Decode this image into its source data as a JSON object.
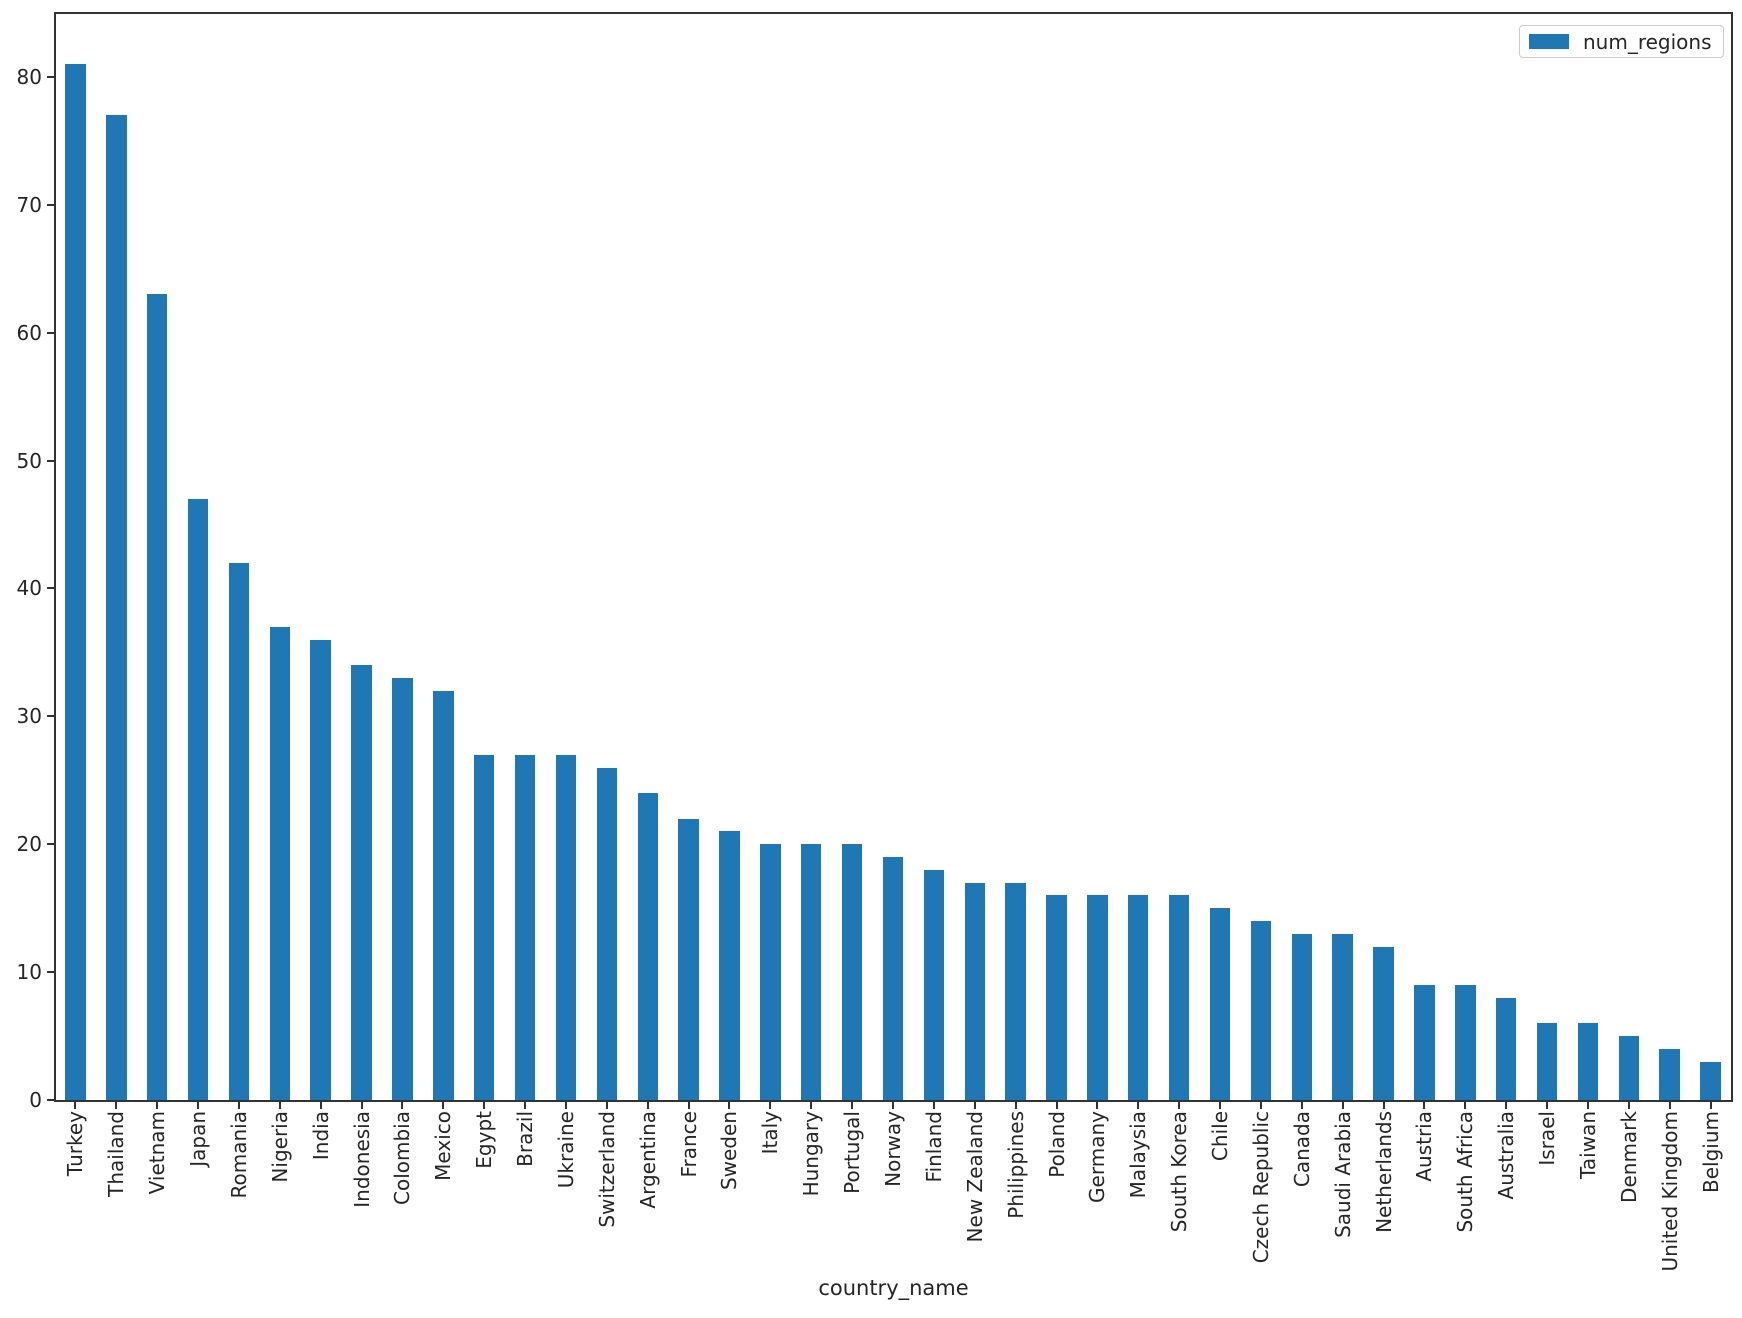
{
  "chart_data": {
    "type": "bar",
    "title": "",
    "xlabel": "country_name",
    "ylabel": "",
    "legend_label": "num_regions",
    "legend_position": "upper right",
    "bar_color": "#1f77b4",
    "axis_color": "#333333",
    "grid": false,
    "ylim": [
      0,
      85
    ],
    "yticks": [
      0,
      10,
      20,
      30,
      40,
      50,
      60,
      70,
      80
    ],
    "categories": [
      "Turkey",
      "Thailand",
      "Vietnam",
      "Japan",
      "Romania",
      "Nigeria",
      "India",
      "Indonesia",
      "Colombia",
      "Mexico",
      "Egypt",
      "Brazil",
      "Ukraine",
      "Switzerland",
      "Argentina",
      "France",
      "Sweden",
      "Italy",
      "Hungary",
      "Portugal",
      "Norway",
      "Finland",
      "New Zealand",
      "Philippines",
      "Poland",
      "Germany",
      "Malaysia",
      "South Korea",
      "Chile",
      "Czech Republic",
      "Canada",
      "Saudi Arabia",
      "Netherlands",
      "Austria",
      "South Africa",
      "Australia",
      "Israel",
      "Taiwan",
      "Denmark",
      "United Kingdom",
      "Belgium"
    ],
    "values": [
      81,
      77,
      63,
      47,
      42,
      37,
      36,
      34,
      33,
      32,
      27,
      27,
      27,
      26,
      24,
      22,
      21,
      20,
      20,
      20,
      19,
      18,
      17,
      17,
      16,
      16,
      16,
      16,
      15,
      14,
      13,
      13,
      12,
      9,
      9,
      8,
      6,
      6,
      5,
      4,
      3
    ]
  }
}
